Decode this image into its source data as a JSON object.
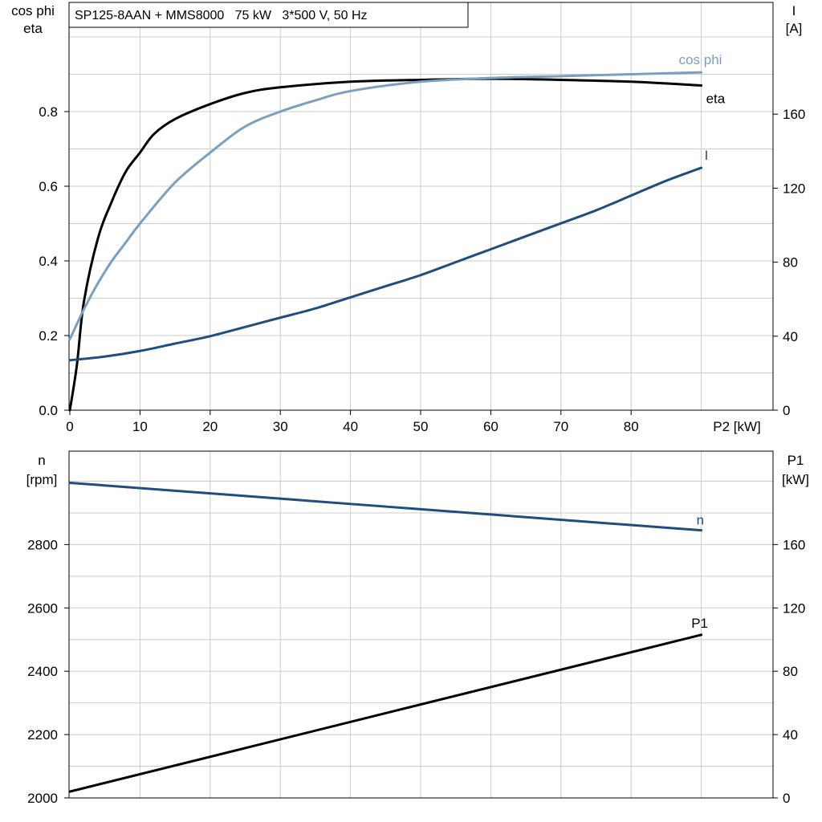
{
  "colors": {
    "grid": "#cccccc",
    "axis": "#000000",
    "eta": "#000000",
    "cos_phi": "#7b9fc0",
    "I": "#1f4e7e",
    "n": "#1f4e7e",
    "P1": "#000000"
  },
  "chart_data": [
    {
      "type": "line",
      "title": "SP125-8AAN + MMS8000   75 kW   3*500 V, 50 Hz",
      "xlabel": "P2 [kW]",
      "xlim": [
        0,
        100
      ],
      "x_ticks": [
        "0",
        "10",
        "20",
        "30",
        "40",
        "50",
        "60",
        "70",
        "80"
      ],
      "grid": true,
      "y_left": {
        "label_line1": "cos phi",
        "label_line2": "eta",
        "lim": [
          0,
          1.1
        ],
        "ticks": [
          "0.0",
          "0.2",
          "0.4",
          "0.6",
          "0.8"
        ]
      },
      "y_right": {
        "label_line1": "I",
        "label_line2": "[A]",
        "lim": [
          0,
          220
        ],
        "ticks": [
          "0",
          "40",
          "80",
          "120",
          "160"
        ]
      },
      "series": [
        {
          "name": "eta",
          "axis": "left",
          "x": [
            0,
            1,
            2,
            4,
            6,
            8,
            10,
            12,
            15,
            20,
            25,
            30,
            40,
            50,
            60,
            70,
            80,
            90
          ],
          "y": [
            0.0,
            0.12,
            0.29,
            0.46,
            0.56,
            0.64,
            0.69,
            0.74,
            0.78,
            0.82,
            0.85,
            0.865,
            0.88,
            0.885,
            0.888,
            0.885,
            0.88,
            0.87
          ]
        },
        {
          "name": "cos phi",
          "axis": "left",
          "x": [
            0,
            2,
            4,
            6,
            8,
            10,
            15,
            20,
            25,
            30,
            35,
            40,
            50,
            60,
            70,
            80,
            90
          ],
          "y": [
            0.19,
            0.27,
            0.34,
            0.4,
            0.45,
            0.5,
            0.61,
            0.69,
            0.76,
            0.8,
            0.83,
            0.855,
            0.88,
            0.89,
            0.895,
            0.9,
            0.905
          ]
        },
        {
          "name": "I",
          "axis": "right",
          "x": [
            0,
            5,
            10,
            15,
            20,
            25,
            30,
            35,
            40,
            45,
            50,
            55,
            60,
            65,
            70,
            75,
            80,
            85,
            90
          ],
          "y": [
            27,
            29,
            32,
            36,
            40,
            45,
            50,
            55,
            61,
            67,
            73,
            80,
            87,
            94,
            101,
            108,
            116,
            124,
            131
          ]
        }
      ]
    },
    {
      "type": "line",
      "xlim": [
        0,
        100
      ],
      "grid": true,
      "y_left": {
        "label_line1": "n",
        "label_line2": "[rpm]",
        "lim": [
          2000,
          3000
        ],
        "ticks": [
          "2000",
          "2200",
          "2400",
          "2600",
          "2800"
        ]
      },
      "y_right": {
        "label_line1": "P1",
        "label_line2": "[kW]",
        "lim": [
          0,
          200
        ],
        "ticks": [
          "0",
          "40",
          "80",
          "120",
          "160"
        ]
      },
      "series": [
        {
          "name": "n",
          "axis": "left",
          "x": [
            0,
            90
          ],
          "y": [
            2995,
            2845
          ]
        },
        {
          "name": "P1",
          "axis": "right",
          "x": [
            0,
            90
          ],
          "y": [
            4,
            103
          ]
        }
      ]
    }
  ]
}
